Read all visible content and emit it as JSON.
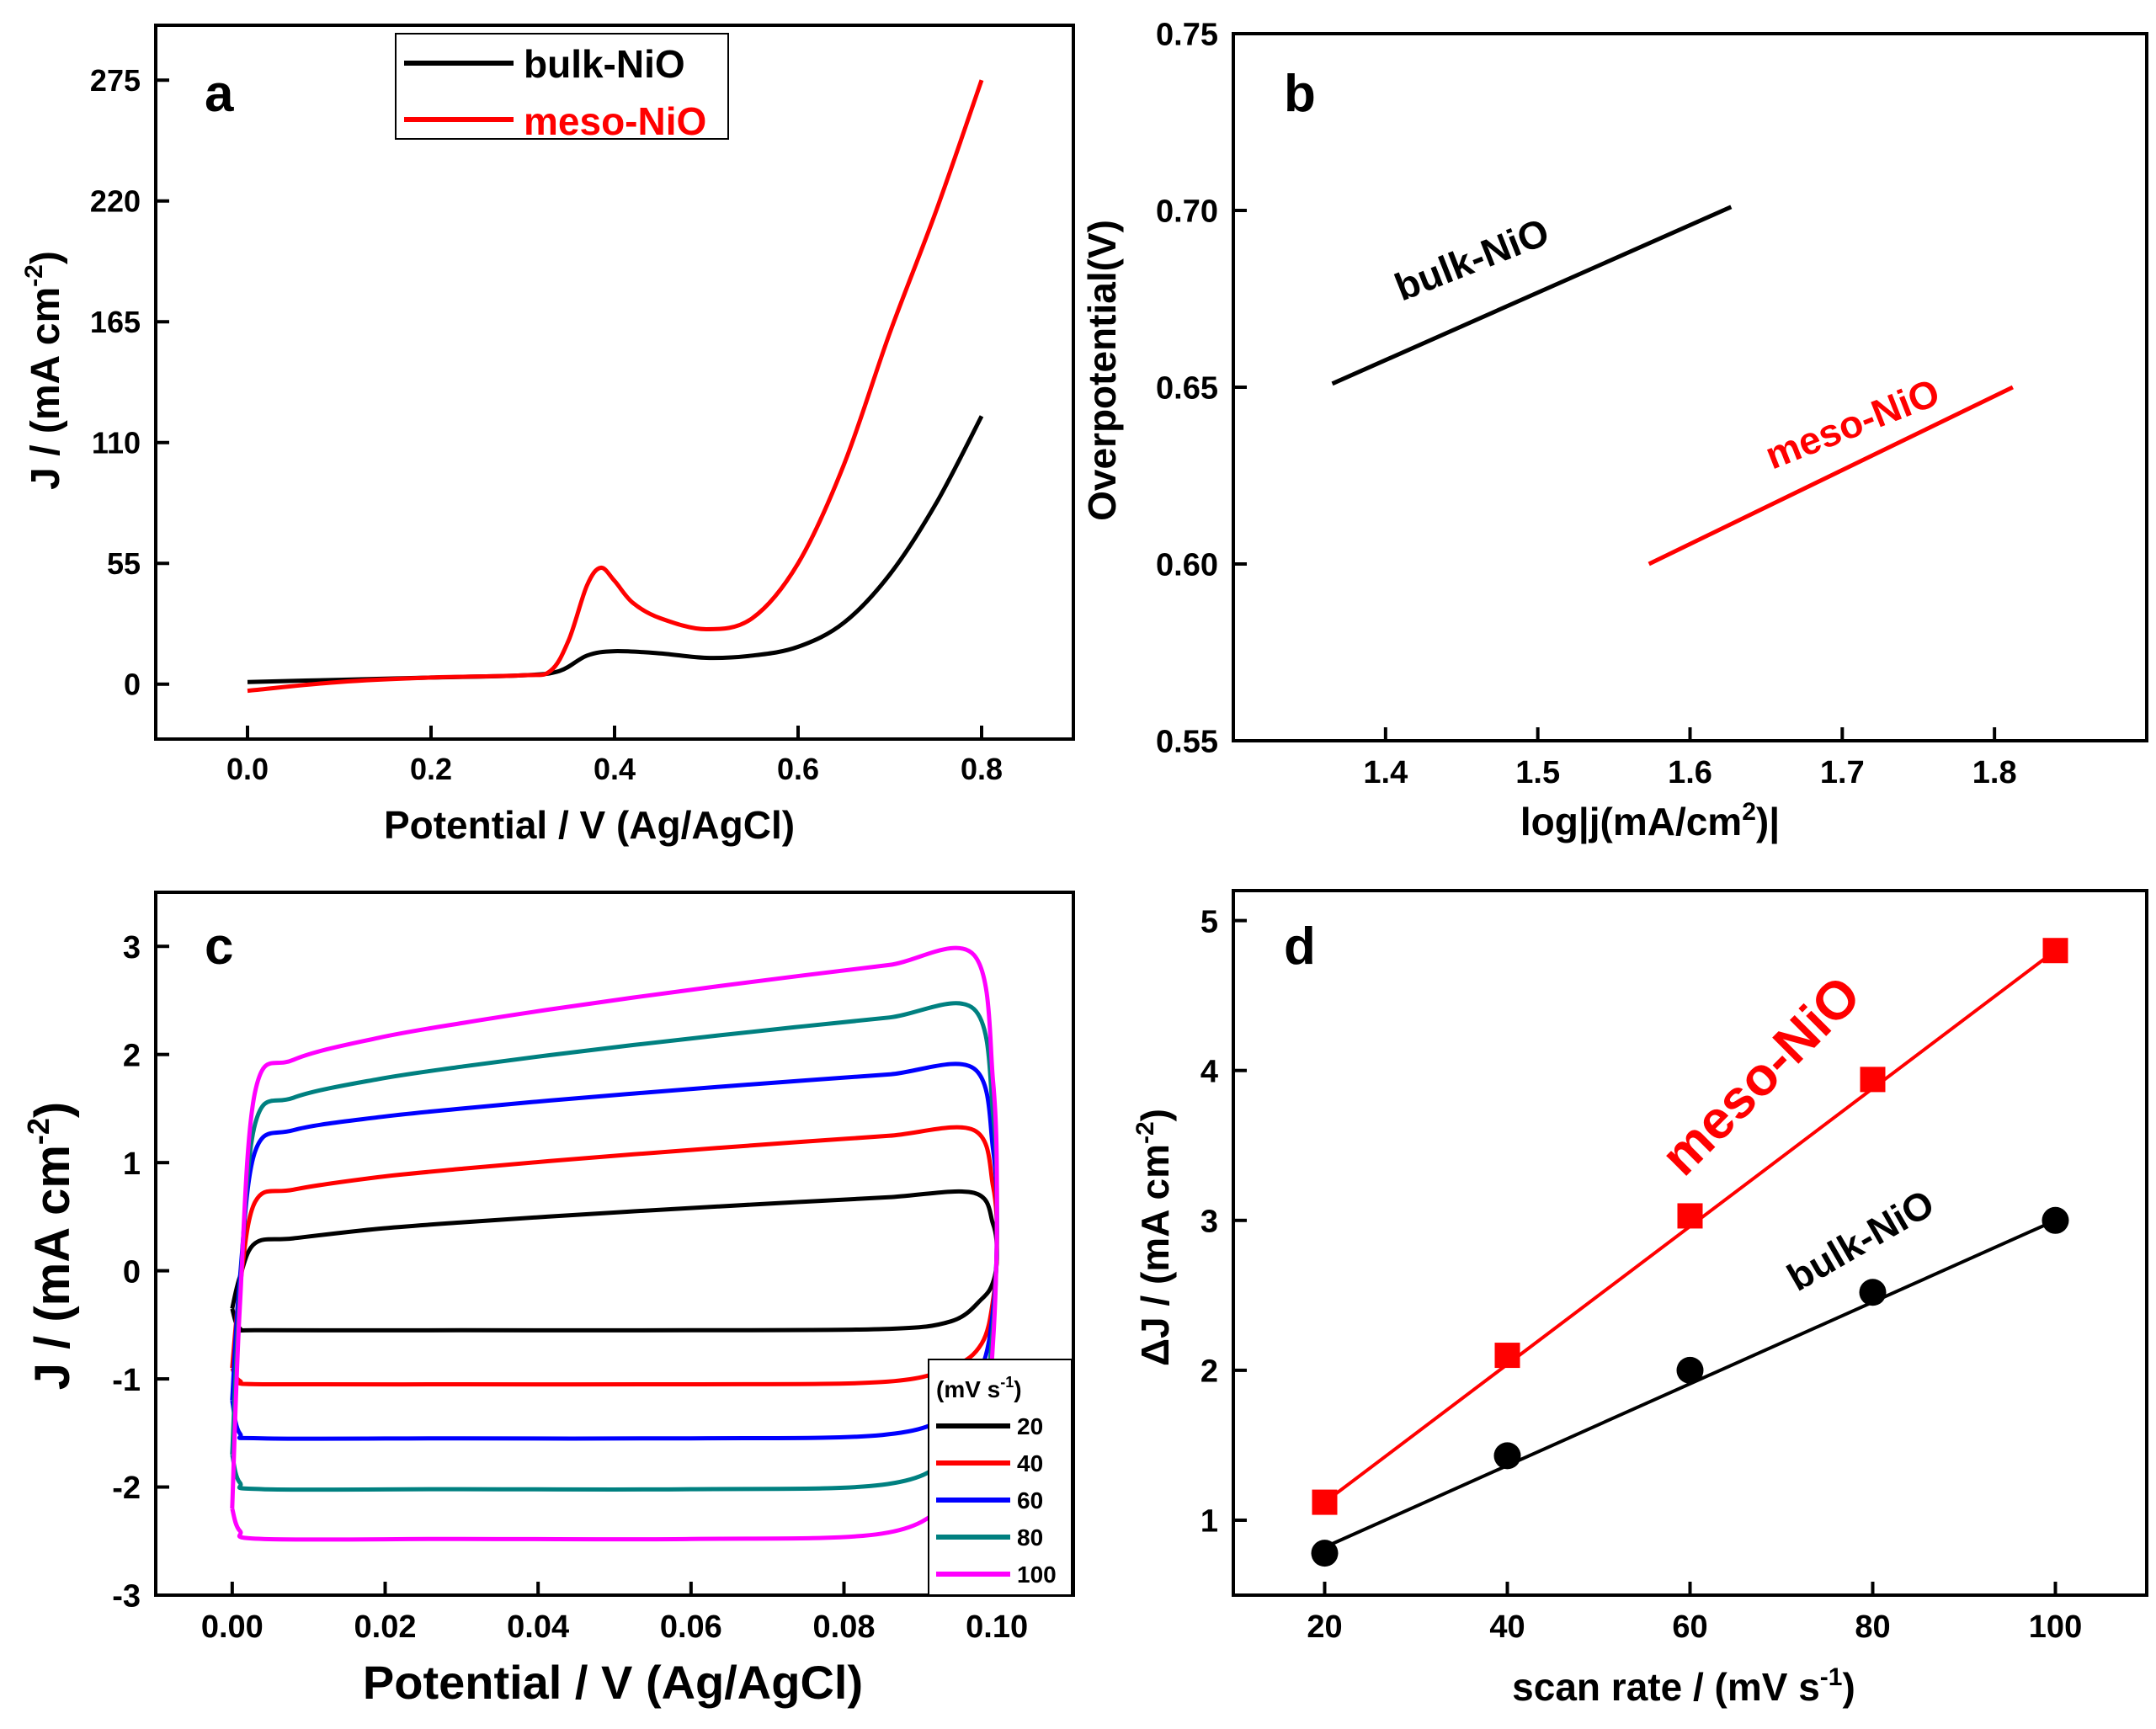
{
  "figure": {
    "panels": [
      "a",
      "b",
      "c",
      "d"
    ]
  },
  "chart_data": [
    {
      "panel": "a",
      "type": "line",
      "xlabel": "Potential / V (Ag/AgCl)",
      "ylabel": "J / (mA cm",
      "ylabel_sup": "-2",
      "ylabel_end": ")",
      "xlim": [
        -0.1,
        0.9
      ],
      "ylim": [
        -25,
        300
      ],
      "xticks": [
        0.0,
        0.2,
        0.4,
        0.6,
        0.8
      ],
      "xtick_labels": [
        "0.0",
        "0.2",
        "0.4",
        "0.6",
        "0.8"
      ],
      "yticks": [
        0,
        55,
        110,
        165,
        220,
        275
      ],
      "ytick_labels": [
        "0",
        "55",
        "110",
        "165",
        "220",
        "275"
      ],
      "legend": {
        "position": "top-center",
        "entries": [
          "bulk-NiO",
          "meso-NiO"
        ]
      },
      "series": [
        {
          "name": "bulk-NiO",
          "color": "#000000",
          "x": [
            0.0,
            0.1,
            0.2,
            0.3,
            0.34,
            0.37,
            0.4,
            0.45,
            0.5,
            0.55,
            0.6,
            0.65,
            0.7,
            0.75,
            0.8
          ],
          "y": [
            1,
            2,
            3,
            4,
            6,
            13,
            15,
            14,
            12,
            13,
            17,
            28,
            50,
            82,
            122
          ]
        },
        {
          "name": "meso-NiO",
          "color": "#ff0000",
          "x": [
            0.0,
            0.1,
            0.2,
            0.3,
            0.33,
            0.35,
            0.37,
            0.385,
            0.4,
            0.42,
            0.45,
            0.5,
            0.55,
            0.6,
            0.65,
            0.7,
            0.75,
            0.8
          ],
          "y": [
            -3,
            1,
            3,
            4,
            6,
            20,
            45,
            53,
            47,
            37,
            30,
            25,
            30,
            55,
            100,
            160,
            215,
            275
          ]
        }
      ]
    },
    {
      "panel": "b",
      "type": "line",
      "xlabel": "log|j(mA/cm",
      "xlabel_sup": "2",
      "xlabel_end": ")|",
      "ylabel": "Overpotential(V)",
      "xlim": [
        1.3,
        1.9
      ],
      "ylim": [
        0.55,
        0.75
      ],
      "xticks": [
        1.4,
        1.5,
        1.6,
        1.7,
        1.8
      ],
      "xtick_labels": [
        "1.4",
        "1.5",
        "1.6",
        "1.7",
        "1.8"
      ],
      "yticks": [
        0.55,
        0.6,
        0.65,
        0.7,
        0.75
      ],
      "ytick_labels": [
        "0.55",
        "0.60",
        "0.65",
        "0.70",
        "0.75"
      ],
      "annotations": [
        "bulk-NiO",
        "meso-NiO"
      ],
      "series": [
        {
          "name": "bulk-NiO",
          "color": "#000000",
          "x": [
            1.365,
            1.627
          ],
          "y": [
            0.651,
            0.701
          ]
        },
        {
          "name": "meso-NiO",
          "color": "#ff0000",
          "x": [
            1.573,
            1.812
          ],
          "y": [
            0.6,
            0.65
          ]
        }
      ]
    },
    {
      "panel": "c",
      "type": "line",
      "xlabel": "Potential / V (Ag/AgCl)",
      "ylabel": "J / (mA cm",
      "ylabel_sup": "-2",
      "ylabel_end": ")",
      "xlim": [
        -0.01,
        0.11
      ],
      "ylim": [
        -3,
        3.5
      ],
      "xticks": [
        0.0,
        0.02,
        0.04,
        0.06,
        0.08,
        0.1
      ],
      "xtick_labels": [
        "0.00",
        "0.02",
        "0.04",
        "0.06",
        "0.08",
        "0.10"
      ],
      "yticks": [
        -3,
        -2,
        -1,
        0,
        1,
        2,
        3
      ],
      "ytick_labels": [
        "-3",
        "-2",
        "-1",
        "0",
        "1",
        "2",
        "3"
      ],
      "legend": {
        "position": "bottom-right",
        "title": "(mV s",
        "title_sup": "-1",
        "title_end": ")",
        "entries": [
          "20",
          "40",
          "60",
          "80",
          "100"
        ]
      },
      "series": [
        {
          "name": "20",
          "color": "#000000",
          "upper_start": 0.3,
          "upper_end": 0.72,
          "lower": -0.55,
          "edge_low": -0.35
        },
        {
          "name": "40",
          "color": "#ff0000",
          "upper_start": 0.75,
          "upper_end": 1.3,
          "lower": -1.05,
          "edge_low": -0.9
        },
        {
          "name": "60",
          "color": "#0000ff",
          "upper_start": 1.3,
          "upper_end": 1.87,
          "lower": -1.55,
          "edge_low": -1.2
        },
        {
          "name": "80",
          "color": "#008080",
          "upper_start": 1.6,
          "upper_end": 2.42,
          "lower": -2.02,
          "edge_low": -1.7
        },
        {
          "name": "100",
          "color": "#ff00ff",
          "upper_start": 1.95,
          "upper_end": 2.92,
          "lower": -2.48,
          "edge_low": -2.2
        }
      ]
    },
    {
      "panel": "d",
      "type": "scatter",
      "xlabel": "scan rate / (mV s",
      "xlabel_sup": "-1",
      "xlabel_end": ")",
      "ylabel": "ΔJ / (mA cm",
      "ylabel_sup": "-2",
      "ylabel_end": ")",
      "xlim": [
        10,
        110
      ],
      "ylim": [
        0.5,
        5.2
      ],
      "xticks": [
        20,
        40,
        60,
        80,
        100
      ],
      "xtick_labels": [
        "20",
        "40",
        "60",
        "80",
        "100"
      ],
      "yticks": [
        1,
        2,
        3,
        4,
        5
      ],
      "ytick_labels": [
        "1",
        "2",
        "3",
        "4",
        "5"
      ],
      "annotations": [
        "meso-NiO",
        "bulk-NiO"
      ],
      "series": [
        {
          "name": "meso-NiO",
          "color": "#ff0000",
          "marker": "square",
          "x": [
            20,
            40,
            60,
            80,
            100
          ],
          "y": [
            1.12,
            2.1,
            3.03,
            3.94,
            4.8
          ],
          "fit": {
            "x": [
              20,
              100
            ],
            "y": [
              1.12,
              4.8
            ]
          }
        },
        {
          "name": "bulk-NiO",
          "color": "#000000",
          "marker": "circle",
          "x": [
            20,
            40,
            60,
            80,
            100
          ],
          "y": [
            0.78,
            1.43,
            2.0,
            2.52,
            3.0
          ],
          "fit": {
            "x": [
              20,
              100
            ],
            "y": [
              0.82,
              3.0
            ]
          }
        }
      ]
    }
  ]
}
